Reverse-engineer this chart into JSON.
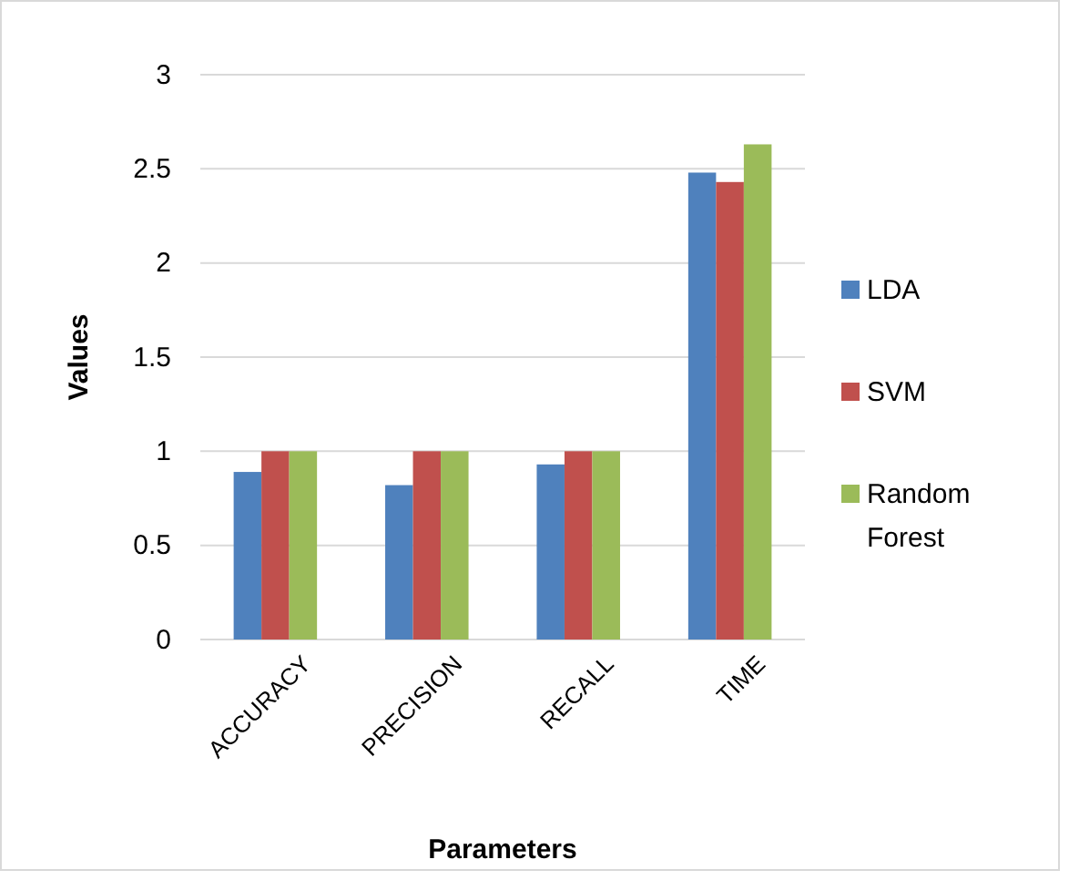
{
  "chart_data": {
    "type": "bar",
    "xlabel": "Parameters",
    "ylabel": "Values",
    "categories": [
      "ACCURACY",
      "PRECISION",
      "RECALL",
      "TIME"
    ],
    "series": [
      {
        "name": "LDA",
        "color": "#4f81bd",
        "values": [
          0.89,
          0.82,
          0.93,
          2.48
        ]
      },
      {
        "name": "SVM",
        "color": "#c0504d",
        "values": [
          1,
          1,
          1,
          2.43
        ]
      },
      {
        "name": "Random Forest",
        "color": "#9bbb59",
        "values": [
          1,
          1,
          1,
          2.63
        ]
      }
    ],
    "ylim": [
      0,
      3
    ],
    "yticks": [
      0,
      0.5,
      1,
      1.5,
      2,
      2.5,
      3
    ],
    "grid": "y",
    "legend": "right"
  }
}
